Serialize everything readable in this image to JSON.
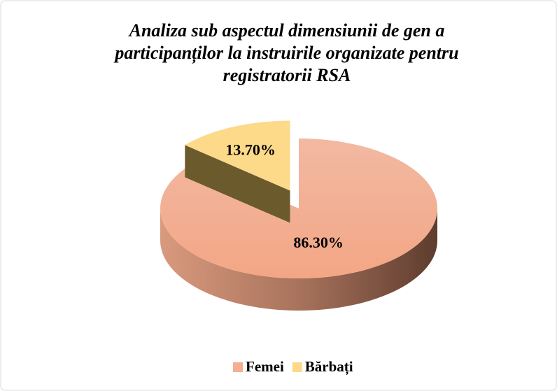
{
  "chart_data": {
    "type": "pie3d",
    "title": "Analiza sub aspectul dimensiunii de gen a participanților la instruirile organizate pentru registratorii RSA",
    "categories": [
      "Femei",
      "Bărbați"
    ],
    "values": [
      86.3,
      13.7
    ],
    "value_labels": [
      "86.30%",
      "13.70%"
    ],
    "colors": [
      "#f4ae90",
      "#fdd98a"
    ],
    "legend": "bottom"
  }
}
